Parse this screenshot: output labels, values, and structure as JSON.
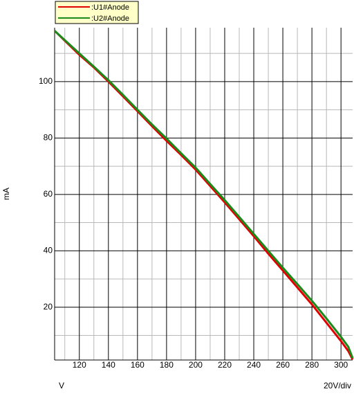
{
  "chart_data": {
    "type": "line",
    "x_label": "V",
    "x_scale_label": "20V/div",
    "y_label": "mA",
    "x": [
      103,
      110,
      120,
      130,
      140,
      150,
      160,
      170,
      180,
      190,
      200,
      210,
      220,
      230,
      240,
      250,
      260,
      270,
      280,
      290,
      300,
      305,
      308
    ],
    "series": [
      {
        "name": ":U1#Anode",
        "color": "#e00000",
        "values": [
          118,
          114.5,
          109.5,
          105,
          100,
          94.8,
          89.5,
          84.2,
          79,
          74,
          68.8,
          63,
          57.2,
          51.2,
          45.2,
          39,
          33,
          27,
          21,
          14.5,
          8,
          4.5,
          1.5
        ]
      },
      {
        "name": ":U2#Anode",
        "color": "#1a8a1a",
        "values": [
          118,
          114.7,
          110,
          105.3,
          100.5,
          95.3,
          90,
          84.8,
          79.8,
          74.6,
          69.5,
          63.7,
          58,
          52,
          46,
          40,
          34,
          28.2,
          22.3,
          16,
          9.5,
          6,
          2
        ]
      }
    ],
    "xlim": [
      103,
      308
    ],
    "ylim": [
      1.3,
      119.1
    ],
    "xticks": [
      120,
      140,
      160,
      180,
      200,
      220,
      240,
      260,
      280,
      300
    ],
    "yticks": [
      20,
      40,
      60,
      80,
      100
    ],
    "x_minor_grid": [
      110,
      130,
      150,
      170,
      190,
      210,
      230,
      250,
      270,
      290
    ],
    "y_minor_grid": [
      10,
      30,
      50,
      70,
      90,
      110
    ],
    "grid": true,
    "legend": "top-left"
  }
}
